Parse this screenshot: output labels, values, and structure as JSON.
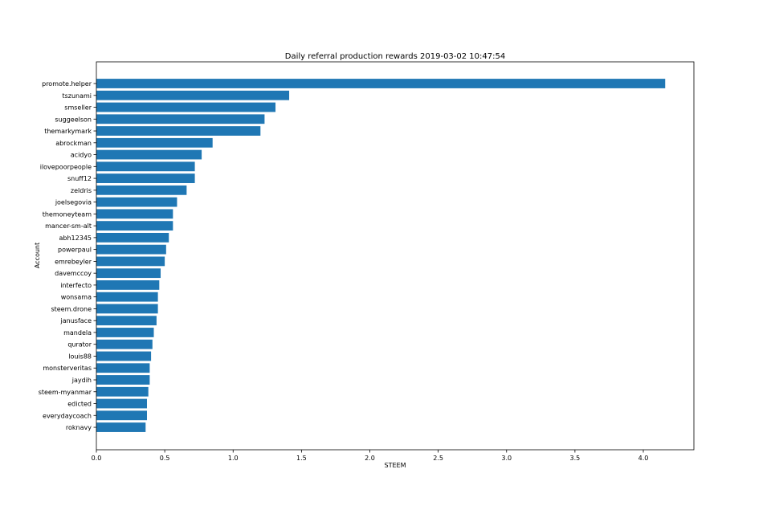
{
  "chart_data": {
    "type": "bar",
    "orientation": "horizontal",
    "title": "Daily referral production rewards 2019-03-02 10:47:54",
    "xlabel": "STEEM",
    "ylabel": "Account",
    "xlim": [
      0.0,
      4.37
    ],
    "x_ticks": [
      "0.0",
      "0.5",
      "1.0",
      "1.5",
      "2.0",
      "2.5",
      "3.0",
      "3.5",
      "4.0"
    ],
    "x_tick_values": [
      0.0,
      0.5,
      1.0,
      1.5,
      2.0,
      2.5,
      3.0,
      3.5,
      4.0
    ],
    "grid": false,
    "legend": "none",
    "bar_color": "#1f77b4",
    "categories": [
      "promote.helper",
      "tszunami",
      "smseller",
      "suggeelson",
      "themarkymark",
      "abrockman",
      "acidyo",
      "ilovepoorpeople",
      "snuff12",
      "zeldris",
      "joelsegovia",
      "themoneyteam",
      "mancer-sm-alt",
      "abh12345",
      "powerpaul",
      "emrebeyler",
      "davemccoy",
      "interfecto",
      "wonsama",
      "steem.drone",
      "janusface",
      "mandela",
      "qurator",
      "louis88",
      "monsterveritas",
      "jaydih",
      "steem-myanmar",
      "edicted",
      "everydaycoach",
      "roknavy"
    ],
    "values": [
      4.16,
      1.41,
      1.31,
      1.23,
      1.2,
      0.85,
      0.77,
      0.72,
      0.72,
      0.66,
      0.59,
      0.56,
      0.56,
      0.53,
      0.51,
      0.5,
      0.47,
      0.46,
      0.45,
      0.45,
      0.44,
      0.42,
      0.41,
      0.4,
      0.39,
      0.39,
      0.38,
      0.37,
      0.37,
      0.36
    ]
  }
}
